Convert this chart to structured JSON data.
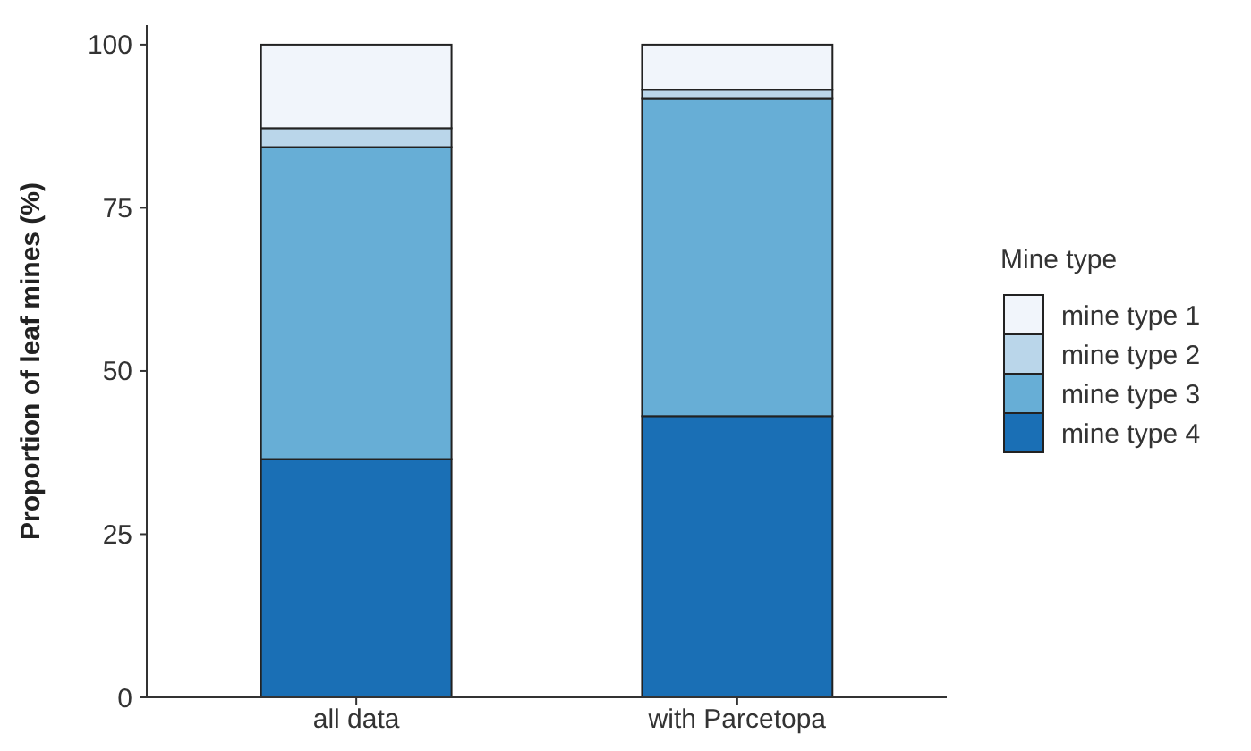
{
  "chart_data": {
    "type": "bar",
    "stacked": true,
    "ylabel": "Proportion of leaf mines (%)",
    "legend_title": "Mine type",
    "legend": "right",
    "categories": [
      "all data",
      "with Parcetopa"
    ],
    "series": [
      {
        "name": "mine type 4",
        "color": "#1a6fb5",
        "values": [
          36.5,
          43.1
        ]
      },
      {
        "name": "mine type 3",
        "color": "#67aed6",
        "values": [
          47.8,
          48.6
        ]
      },
      {
        "name": "mine type 2",
        "color": "#bad6ea",
        "values": [
          2.9,
          1.4
        ]
      },
      {
        "name": "mine type 1",
        "color": "#f1f5fb",
        "values": [
          12.8,
          6.9
        ]
      }
    ],
    "ylim": [
      0,
      103
    ],
    "yticks": [
      0,
      25,
      50,
      75,
      100
    ]
  }
}
